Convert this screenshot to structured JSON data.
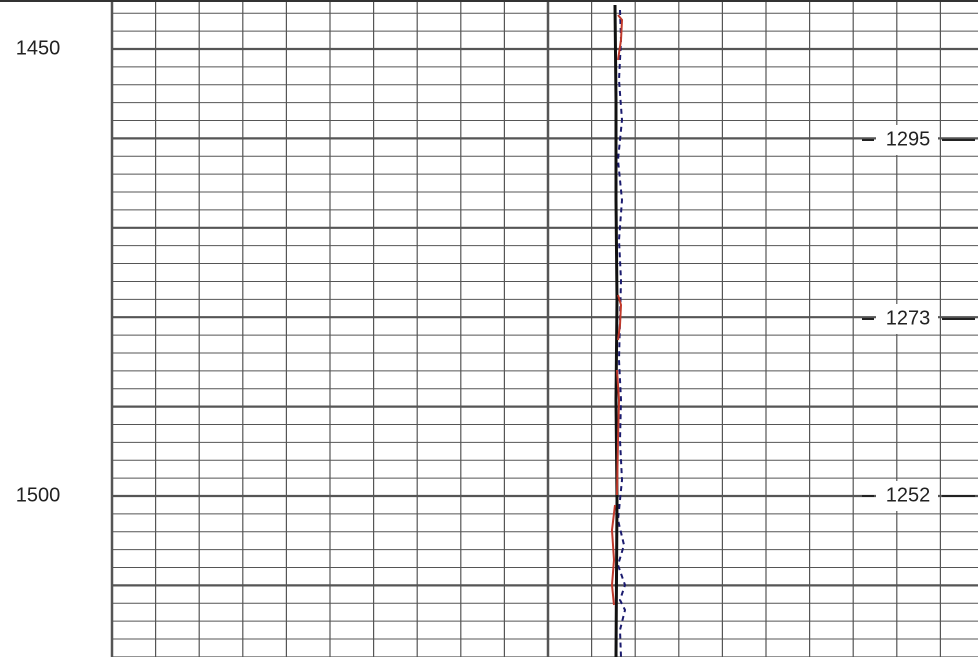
{
  "depth_labels": [
    "1450",
    "1500"
  ],
  "curve_labels": [
    "1295",
    "1273",
    "1252"
  ]
}
